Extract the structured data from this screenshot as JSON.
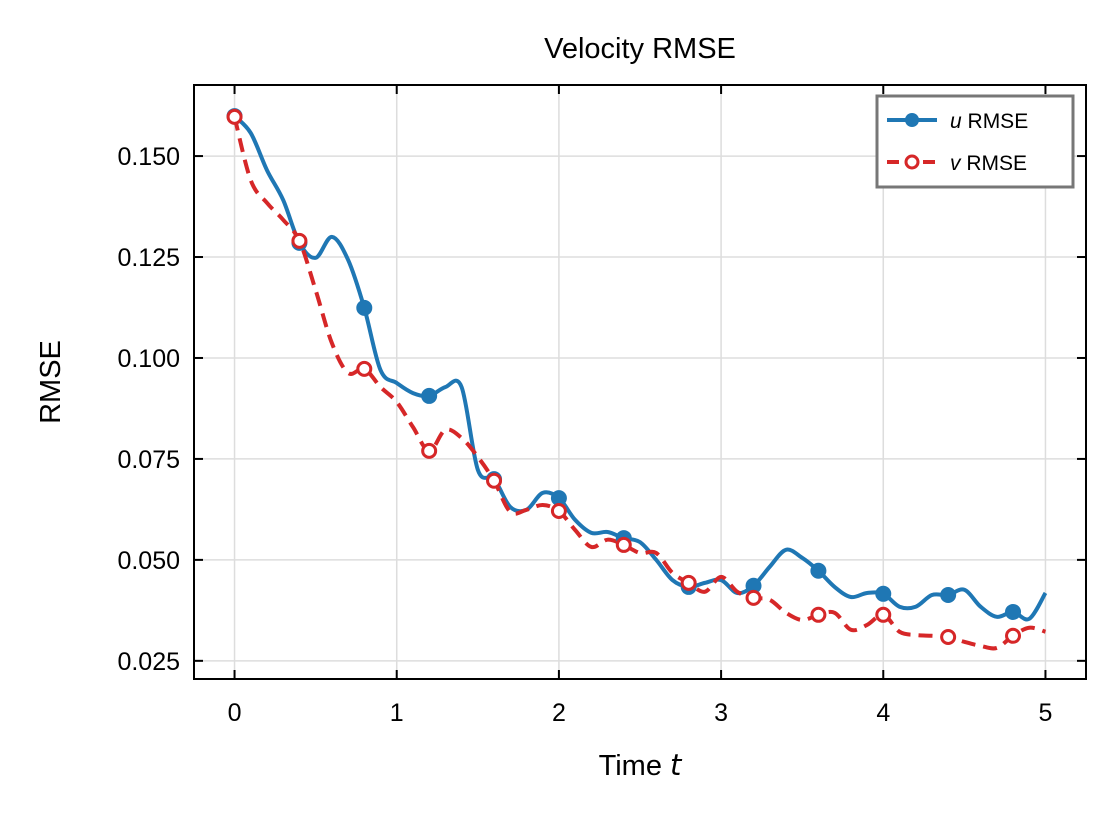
{
  "chart_data": {
    "type": "line",
    "title": "Velocity RMSE",
    "xlabel": "Time",
    "xlabel_var": "t",
    "ylabel": "RMSE",
    "xlim": [
      -0.25,
      5.25
    ],
    "ylim": [
      0.0205,
      0.1676
    ],
    "xticks": [
      0,
      1,
      2,
      3,
      4,
      5
    ],
    "xtick_labels": [
      "0",
      "1",
      "2",
      "3",
      "4",
      "5"
    ],
    "yticks": [
      0.025,
      0.05,
      0.075,
      0.1,
      0.125,
      0.15
    ],
    "ytick_labels": [
      "0.025",
      "0.050",
      "0.075",
      "0.100",
      "0.125",
      "0.150"
    ],
    "grid": true,
    "legend_position": "top-right",
    "marker_every": 0.4,
    "x": [
      0,
      0.1,
      0.2,
      0.3,
      0.4,
      0.5,
      0.6,
      0.7,
      0.8,
      0.9,
      1.0,
      1.1,
      1.2,
      1.3,
      1.4,
      1.5,
      1.6,
      1.7,
      1.8,
      1.9,
      2.0,
      2.1,
      2.2,
      2.3,
      2.4,
      2.5,
      2.6,
      2.7,
      2.8,
      2.9,
      3.0,
      3.1,
      3.2,
      3.3,
      3.4,
      3.5,
      3.6,
      3.7,
      3.8,
      3.9,
      4.0,
      4.1,
      4.2,
      4.3,
      4.4,
      4.5,
      4.6,
      4.7,
      4.8,
      4.9,
      5.0
    ],
    "series": [
      {
        "name": "u RMSE",
        "name_var": "u",
        "name_rest": " RMSE",
        "color": "#1f77b4",
        "style": "solid",
        "marker": "filled-circle",
        "values": [
          0.1599,
          0.1557,
          0.1465,
          0.1391,
          0.1285,
          0.1248,
          0.13,
          0.1243,
          0.1124,
          0.097,
          0.0938,
          0.0913,
          0.0906,
          0.0928,
          0.0928,
          0.0723,
          0.07,
          0.0631,
          0.0624,
          0.0666,
          0.0653,
          0.0599,
          0.0567,
          0.0569,
          0.0554,
          0.0544,
          0.05,
          0.045,
          0.0433,
          0.0443,
          0.045,
          0.0418,
          0.0436,
          0.0483,
          0.0525,
          0.0505,
          0.0473,
          0.0433,
          0.0408,
          0.0418,
          0.0416,
          0.0384,
          0.0384,
          0.0413,
          0.0413,
          0.0426,
          0.0384,
          0.0359,
          0.0371,
          0.0354,
          0.0418
        ]
      },
      {
        "name": "v RMSE",
        "name_var": "v",
        "name_rest": " RMSE",
        "color": "#d62728",
        "style": "dashed",
        "marker": "open-circle",
        "values": [
          0.1597,
          0.144,
          0.1384,
          0.1342,
          0.129,
          0.1168,
          0.1037,
          0.0963,
          0.0973,
          0.0928,
          0.0891,
          0.0829,
          0.077,
          0.0822,
          0.0802,
          0.0755,
          0.0696,
          0.0619,
          0.0624,
          0.0636,
          0.0621,
          0.0574,
          0.0532,
          0.055,
          0.0537,
          0.0517,
          0.0517,
          0.0468,
          0.0443,
          0.0421,
          0.0458,
          0.0421,
          0.0406,
          0.0401,
          0.0369,
          0.0351,
          0.0364,
          0.0369,
          0.0327,
          0.0339,
          0.0364,
          0.0322,
          0.0314,
          0.0312,
          0.0309,
          0.0297,
          0.0287,
          0.0282,
          0.0312,
          0.0332,
          0.0322
        ]
      }
    ]
  }
}
